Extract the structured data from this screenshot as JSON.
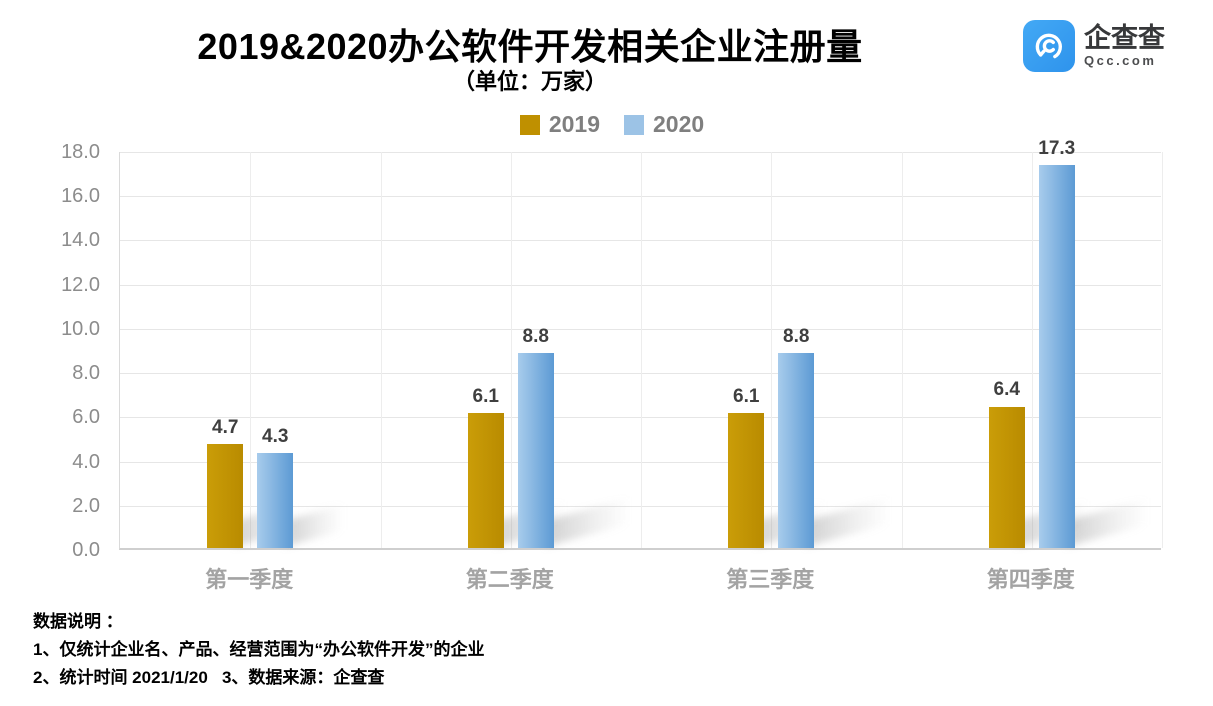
{
  "title": "2019&2020办公软件开发相关企业注册量",
  "subtitle": "（单位：万家）",
  "logo": {
    "name": "企查查",
    "domain": "Qcc.com",
    "brand_color": "#35A0F2"
  },
  "chart_data": {
    "type": "bar",
    "title": "2019&2020办公软件开发相关企业注册量",
    "subtitle": "（单位：万家）",
    "categories": [
      "第一季度",
      "第二季度",
      "第三季度",
      "第四季度"
    ],
    "series": [
      {
        "name": "2019",
        "values": [
          4.7,
          6.1,
          6.1,
          6.4
        ],
        "legend_color": "#BF9000",
        "bar_color_start": "#CA9D08",
        "bar_color_end": "#B98B00"
      },
      {
        "name": "2020",
        "values": [
          4.3,
          8.8,
          8.8,
          17.3
        ],
        "legend_color": "#9CC3E6",
        "bar_color_start": "#A8CCEC",
        "bar_color_end": "#5C9AD4"
      }
    ],
    "ylim": [
      0,
      18
    ],
    "ytick_step": 2,
    "grid": true,
    "legend_position": "top",
    "value_labels_decimals": 1
  },
  "footer": {
    "heading": "数据说明 ：",
    "line1": "1、仅统计企业名、产品、经营范围为“办公软件开发”的企业",
    "line2": "2、统计时间 2021/1/20   3、数据来源：企查查"
  }
}
